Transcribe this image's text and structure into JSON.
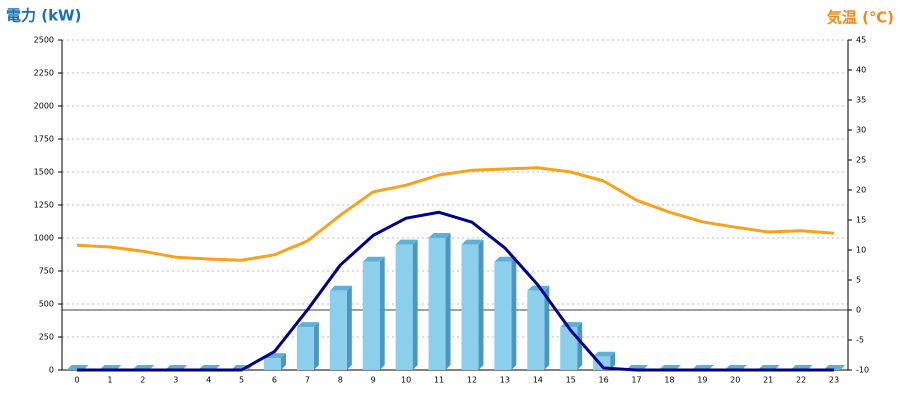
{
  "chart_data": {
    "type": "combo",
    "ylabel": "電力 (kW)",
    "y2label": "気温 (℃)",
    "categories": [
      "0",
      "1",
      "2",
      "3",
      "4",
      "5",
      "6",
      "7",
      "8",
      "9",
      "10",
      "11",
      "12",
      "13",
      "14",
      "15",
      "16",
      "17",
      "18",
      "19",
      "20",
      "21",
      "22",
      "23"
    ],
    "series": [
      {
        "type": "bar",
        "color": "#8ccfec",
        "values": [
          0,
          0,
          0,
          0,
          0,
          0,
          90,
          325,
          600,
          820,
          950,
          1000,
          950,
          820,
          600,
          325,
          100,
          0,
          0,
          0,
          0,
          0,
          0,
          0
        ]
      },
      {
        "type": "line",
        "color": "#000088",
        "values": [
          0,
          0,
          0,
          0,
          0,
          0,
          140,
          455,
          795,
          1020,
          1150,
          1195,
          1120,
          925,
          645,
          300,
          15,
          0,
          0,
          0,
          0,
          0,
          0,
          0
        ]
      },
      {
        "type": "line",
        "color": "#f7a21b",
        "axis": "y2",
        "values": [
          10.8,
          10.5,
          9.8,
          8.8,
          8.5,
          8.3,
          9.2,
          11.5,
          15.8,
          19.7,
          20.8,
          22.5,
          23.3,
          23.5,
          23.7,
          23,
          21.5,
          18.3,
          16.3,
          14.7,
          13.8,
          13,
          13.2,
          12.8
        ]
      }
    ],
    "ylim": [
      0,
      2500
    ],
    "yticks": [
      0,
      250,
      500,
      750,
      1000,
      1250,
      1500,
      1750,
      2000,
      2250,
      2500
    ],
    "y2lim": [
      -10,
      45
    ],
    "y2ticks": [
      -10,
      -5,
      0,
      5,
      10,
      15,
      20,
      25,
      30,
      35,
      40,
      45
    ],
    "grid": true,
    "y2_zero_line": true
  }
}
